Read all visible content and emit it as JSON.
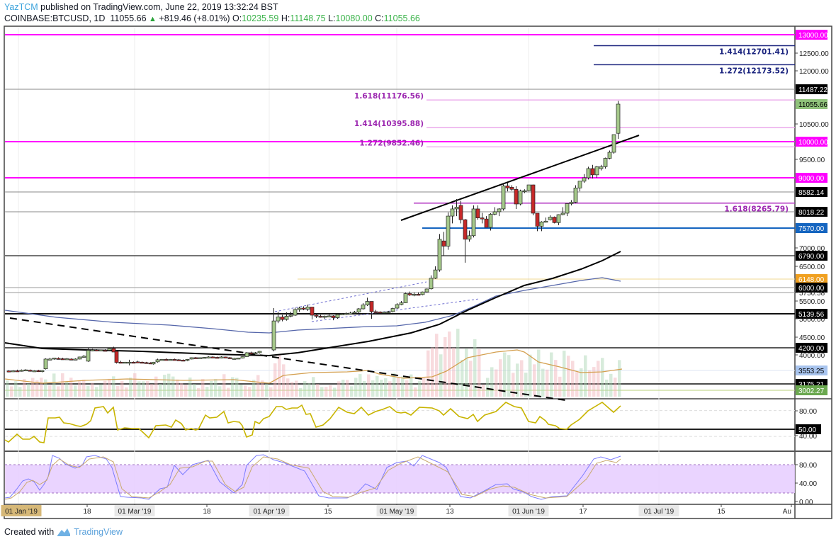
{
  "header": {
    "author": "YazTCM",
    "published": " published on TradingView.com, June 22, 2019 13:32:24 BST",
    "symbol": "COINBASE:BTCUSD, 1D",
    "last": "11055.66",
    "change": "+819.46 (+8.01%)",
    "o_label": "O:",
    "o": "10235.59",
    "h_label": "H:",
    "h": "11148.75",
    "l_label": "L:",
    "l": "10080.00",
    "c_label": "C:",
    "c": "11055.66"
  },
  "footer": {
    "created_with": "Created with",
    "brand": "TradingView"
  },
  "colors": {
    "magenta": "#ff00ff",
    "fib_purple": "#9c27b0",
    "fib_blue": "#1a237e",
    "support_blue": "#1565c0",
    "candle_up": "#a5c88a",
    "candle_down": "#c62828",
    "rsi": "#c8b400",
    "stoch_k": "#7b7bff",
    "stoch_d": "#c9a96e",
    "stoch_band": "#e6ccff",
    "ma_black": "#000000",
    "ma_blue": "#5566aa",
    "vol_ma": "#d4a050"
  },
  "chart_data": {
    "type": "candlestick",
    "title": "COINBASE:BTCUSD, 1D",
    "xlabel": "",
    "ylabel": "Price (USD)",
    "ylim": [
      2900,
      13100
    ],
    "x_ticks": [
      "01 Jan '19",
      "18",
      "01 Mar '19",
      "18",
      "01 Apr '19",
      "15",
      "01 May '19",
      "13",
      "01 Jun '19",
      "17",
      "01 Jul '19",
      "15",
      "Au"
    ],
    "y_ticks": [
      "13000.00",
      "12500.00",
      "12000.00",
      "11487.22",
      "11055.66",
      "10500.00",
      "10000.00",
      "9500.00",
      "9000.00",
      "8582.14",
      "8018.22",
      "7570.00",
      "7000.00",
      "6790.00",
      "6500.00",
      "6148.00",
      "6000.00",
      "5750.58",
      "5500.00",
      "5139.56",
      "5000.00",
      "4500.00",
      "4200.00",
      "4000.00",
      "3553.25",
      "3175.21",
      "3002.27"
    ],
    "price_labels": [
      {
        "value": "13000.00",
        "bg": "#ff00ff",
        "fg": "#ffffff"
      },
      {
        "value": "11487.22",
        "bg": "#000000",
        "fg": "#ffffff"
      },
      {
        "value": "11055.66",
        "bg": "#8fc27a",
        "fg": "#000000"
      },
      {
        "value": "10000.00",
        "bg": "#ff00ff",
        "fg": "#ffffff"
      },
      {
        "value": "9000.00",
        "bg": "#ff00ff",
        "fg": "#ffffff"
      },
      {
        "value": "8582.14",
        "bg": "#000000",
        "fg": "#ffffff"
      },
      {
        "value": "8018.22",
        "bg": "#000000",
        "fg": "#ffffff"
      },
      {
        "value": "7570.00",
        "bg": "#1565c0",
        "fg": "#ffffff"
      },
      {
        "value": "6790.00",
        "bg": "#000000",
        "fg": "#ffffff"
      },
      {
        "value": "6148.00",
        "bg": "#f0a020",
        "fg": "#ffffff"
      },
      {
        "value": "6000.00",
        "bg": "#000000",
        "fg": "#ffffff"
      },
      {
        "value": "5139.56",
        "bg": "#000000",
        "fg": "#ffffff"
      },
      {
        "value": "4200.00",
        "bg": "#000000",
        "fg": "#ffffff"
      },
      {
        "value": "3553.25",
        "bg": "#a8c4ee",
        "fg": "#000000"
      },
      {
        "value": "3175.21",
        "bg": "#000000",
        "fg": "#ffffff"
      },
      {
        "value": "3002.27",
        "bg": "#6aa84f",
        "fg": "#ffffff"
      }
    ],
    "fib_extensions": [
      {
        "label": "1.414(12701.41)",
        "value": 12701.41,
        "color": "#1a237e"
      },
      {
        "label": "1.272(12173.52)",
        "value": 12173.52,
        "color": "#1a237e"
      },
      {
        "label": "1.618(11176.56)",
        "value": 11176.56,
        "color": "#9c27b0"
      },
      {
        "label": "1.414(10395.88)",
        "value": 10395.88,
        "color": "#9c27b0"
      },
      {
        "label": "1.272(9852.46)",
        "value": 9852.46,
        "color": "#9c27b0"
      },
      {
        "label": "1.618(8265.79)",
        "value": 8265.79,
        "color": "#9c27b0"
      }
    ],
    "horizontal_levels": [
      13000,
      11487.22,
      10000,
      9000,
      8582.14,
      8018.22,
      7570,
      6790,
      6148,
      6000,
      5750.58,
      5139.56,
      4200,
      3553.25,
      3175.21,
      3002.27
    ],
    "last_candle": {
      "open": 10235.59,
      "high": 11148.75,
      "low": 10080.0,
      "close": 11055.66
    },
    "rsi": {
      "ticks": [
        "80.00",
        "50.00",
        "40.00"
      ],
      "level_label": "50.00",
      "last_approx": 86
    },
    "stoch_rsi": {
      "ticks": [
        "80.00",
        "40.00",
        "0.00"
      ],
      "band": [
        20,
        80
      ],
      "last_approx": 95
    },
    "legend_position": "none",
    "grid": true
  }
}
